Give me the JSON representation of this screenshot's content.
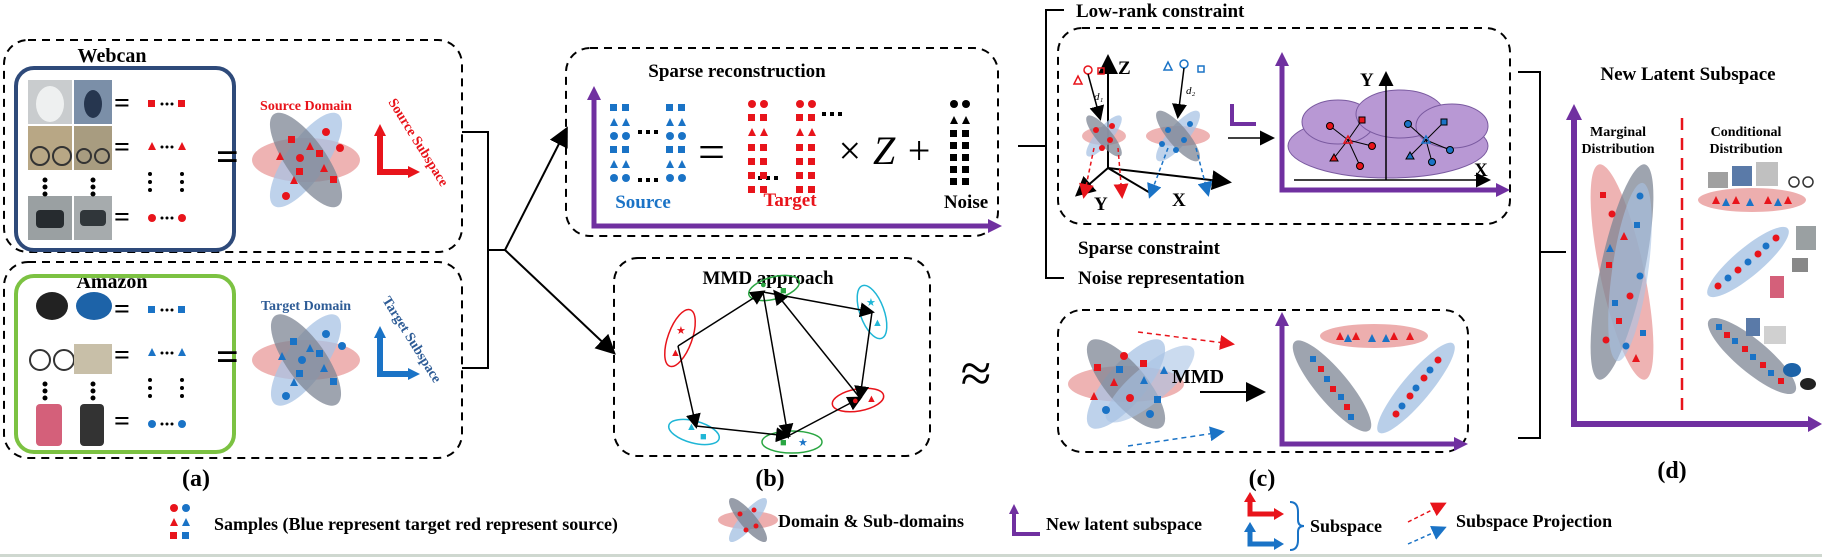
{
  "panel_a": {
    "webcan_title": "Webcan",
    "amazon_title": "Amazon",
    "source_domain": "Source Domain",
    "source_subspace": "Source Subspace",
    "target_domain": "Target Domain",
    "target_subspace": "Target Subspace",
    "caption": "(a)"
  },
  "panel_b": {
    "sparse_title": "Sparse reconstruction",
    "source_label": "Source",
    "target_label": "Target",
    "noise_label": "Noise",
    "times_z": "× Z +",
    "equals": "=",
    "mmd_title": "MMD approach",
    "caption": "(b)"
  },
  "approx": "≈",
  "panel_c": {
    "low_rank": "Low-rank constraint",
    "sparse_constraint": "Sparse constraint",
    "noise_repr": "Noise representation",
    "axis_z": "Z",
    "axis_y": "Y",
    "axis_x": "X",
    "d1": "d₁",
    "d2": "d₂",
    "mmd": "MMD",
    "caption": "(c)"
  },
  "panel_d": {
    "title": "New Latent Subspace",
    "marginal": "Marginal Distribution",
    "conditional": "Conditional Distribution",
    "caption": "(d)"
  },
  "legend": {
    "samples": "Samples (Blue represent target red represent source)",
    "domains": "Domain & Sub-domains",
    "latent": "New latent subspace",
    "subspace": "Subspace",
    "projection": "Subspace Projection"
  },
  "colors": {
    "source": "#e8141b",
    "target": "#1a73c6",
    "latent": "#7030a0",
    "webcan_border": "#2e4a7a",
    "amazon_border": "#7cc242"
  }
}
